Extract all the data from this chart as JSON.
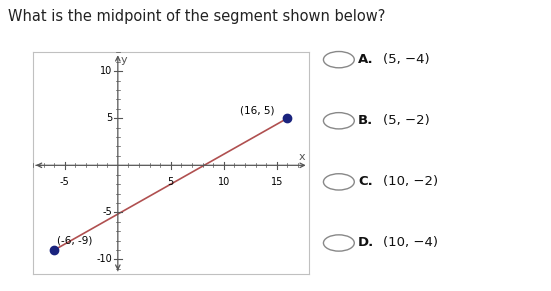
{
  "title": "What is the midpoint of the segment shown below?",
  "point1": [
    -6,
    -9
  ],
  "point2": [
    16,
    5
  ],
  "point1_label": "(-6, -9)",
  "point2_label": "(16, 5)",
  "xlim": [
    -8,
    18
  ],
  "ylim": [
    -11.5,
    12
  ],
  "xticks_major": [
    -5,
    5,
    10,
    15
  ],
  "yticks_major": [
    -10,
    -5,
    5,
    10
  ],
  "line_color": "#b05050",
  "point_color": "#1a237e",
  "bg_color": "#ffffff",
  "plot_bg": "#ffffff",
  "plot_border": "#c0c0c0",
  "axis_color": "#555555",
  "choices": [
    {
      "label": "A.",
      "text": "(5, −4)"
    },
    {
      "label": "B.",
      "text": "(5, −2)"
    },
    {
      "label": "C.",
      "text": "(10, −2)"
    },
    {
      "label": "D.",
      "text": "(10, −4)"
    }
  ]
}
